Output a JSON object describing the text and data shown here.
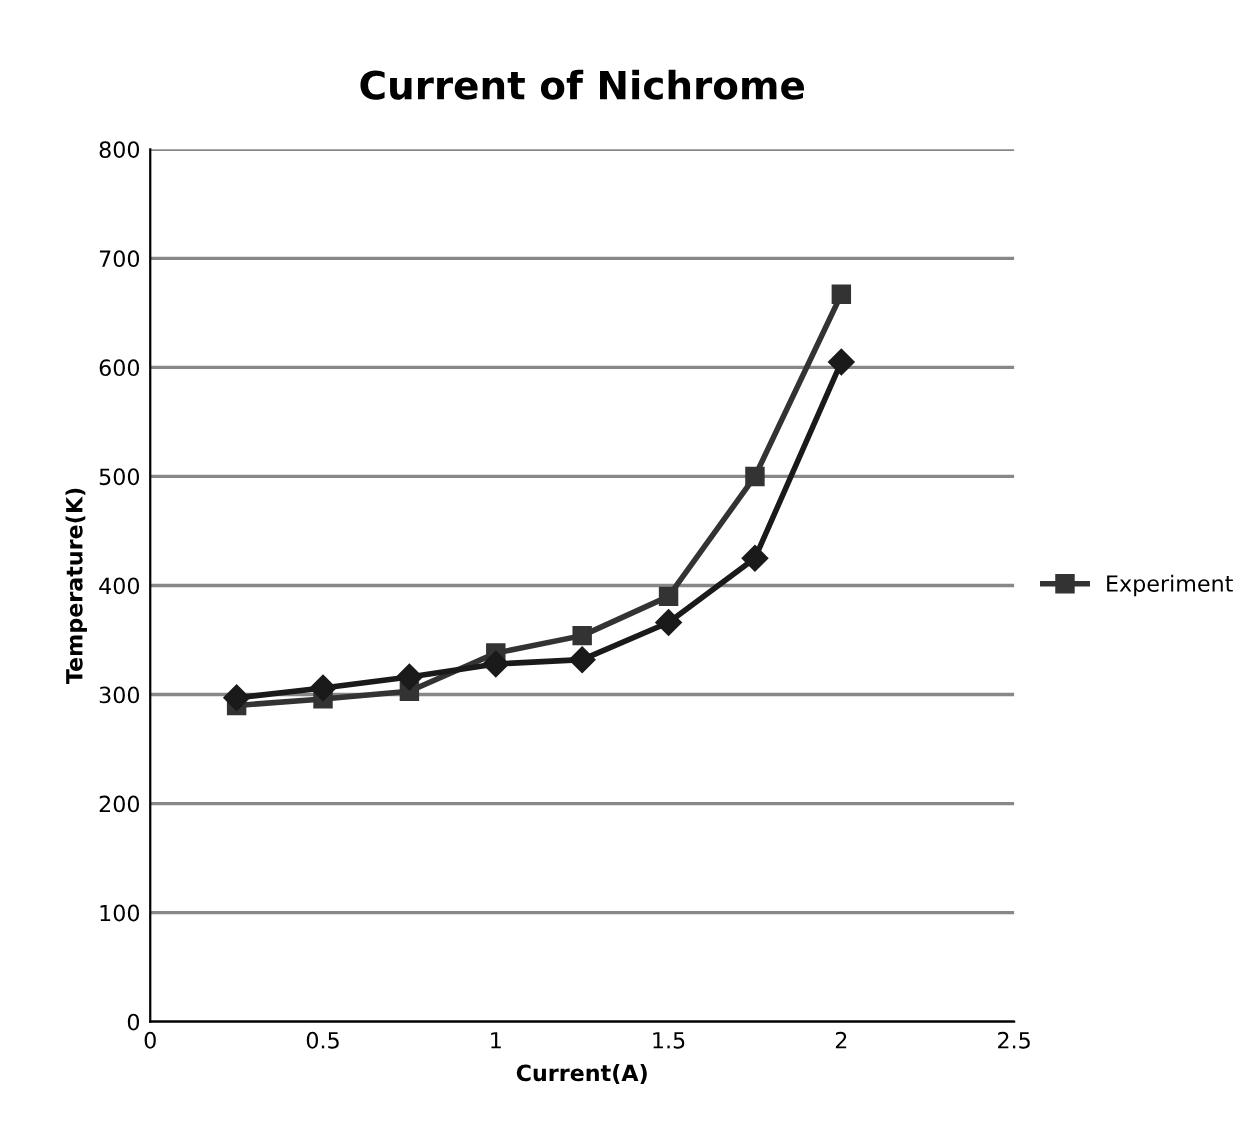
{
  "chart_data": {
    "type": "line",
    "title": "Current of Nichrome",
    "xlabel": "Current(A)",
    "ylabel": "Temperature(K)",
    "x": [
      0.25,
      0.5,
      0.75,
      1.0,
      1.25,
      1.5,
      1.75,
      2.0
    ],
    "series": [
      {
        "color": "#1a1a1a",
        "marker": "diamond",
        "values": [
          297,
          306,
          316,
          328,
          332,
          366,
          425,
          605
        ]
      },
      {
        "name": "Experiment",
        "color": "#333333",
        "marker": "square",
        "values": [
          290,
          296,
          303,
          338,
          354,
          390,
          500,
          667
        ]
      }
    ],
    "xlim": [
      0,
      2.5
    ],
    "xticks": [
      0,
      0.5,
      1,
      1.5,
      2,
      2.5
    ],
    "ylim": [
      0,
      800
    ],
    "yticks": [
      0,
      100,
      200,
      300,
      400,
      500,
      600,
      700,
      800
    ],
    "grid": "y",
    "legend": "right",
    "line_style": "solid"
  }
}
